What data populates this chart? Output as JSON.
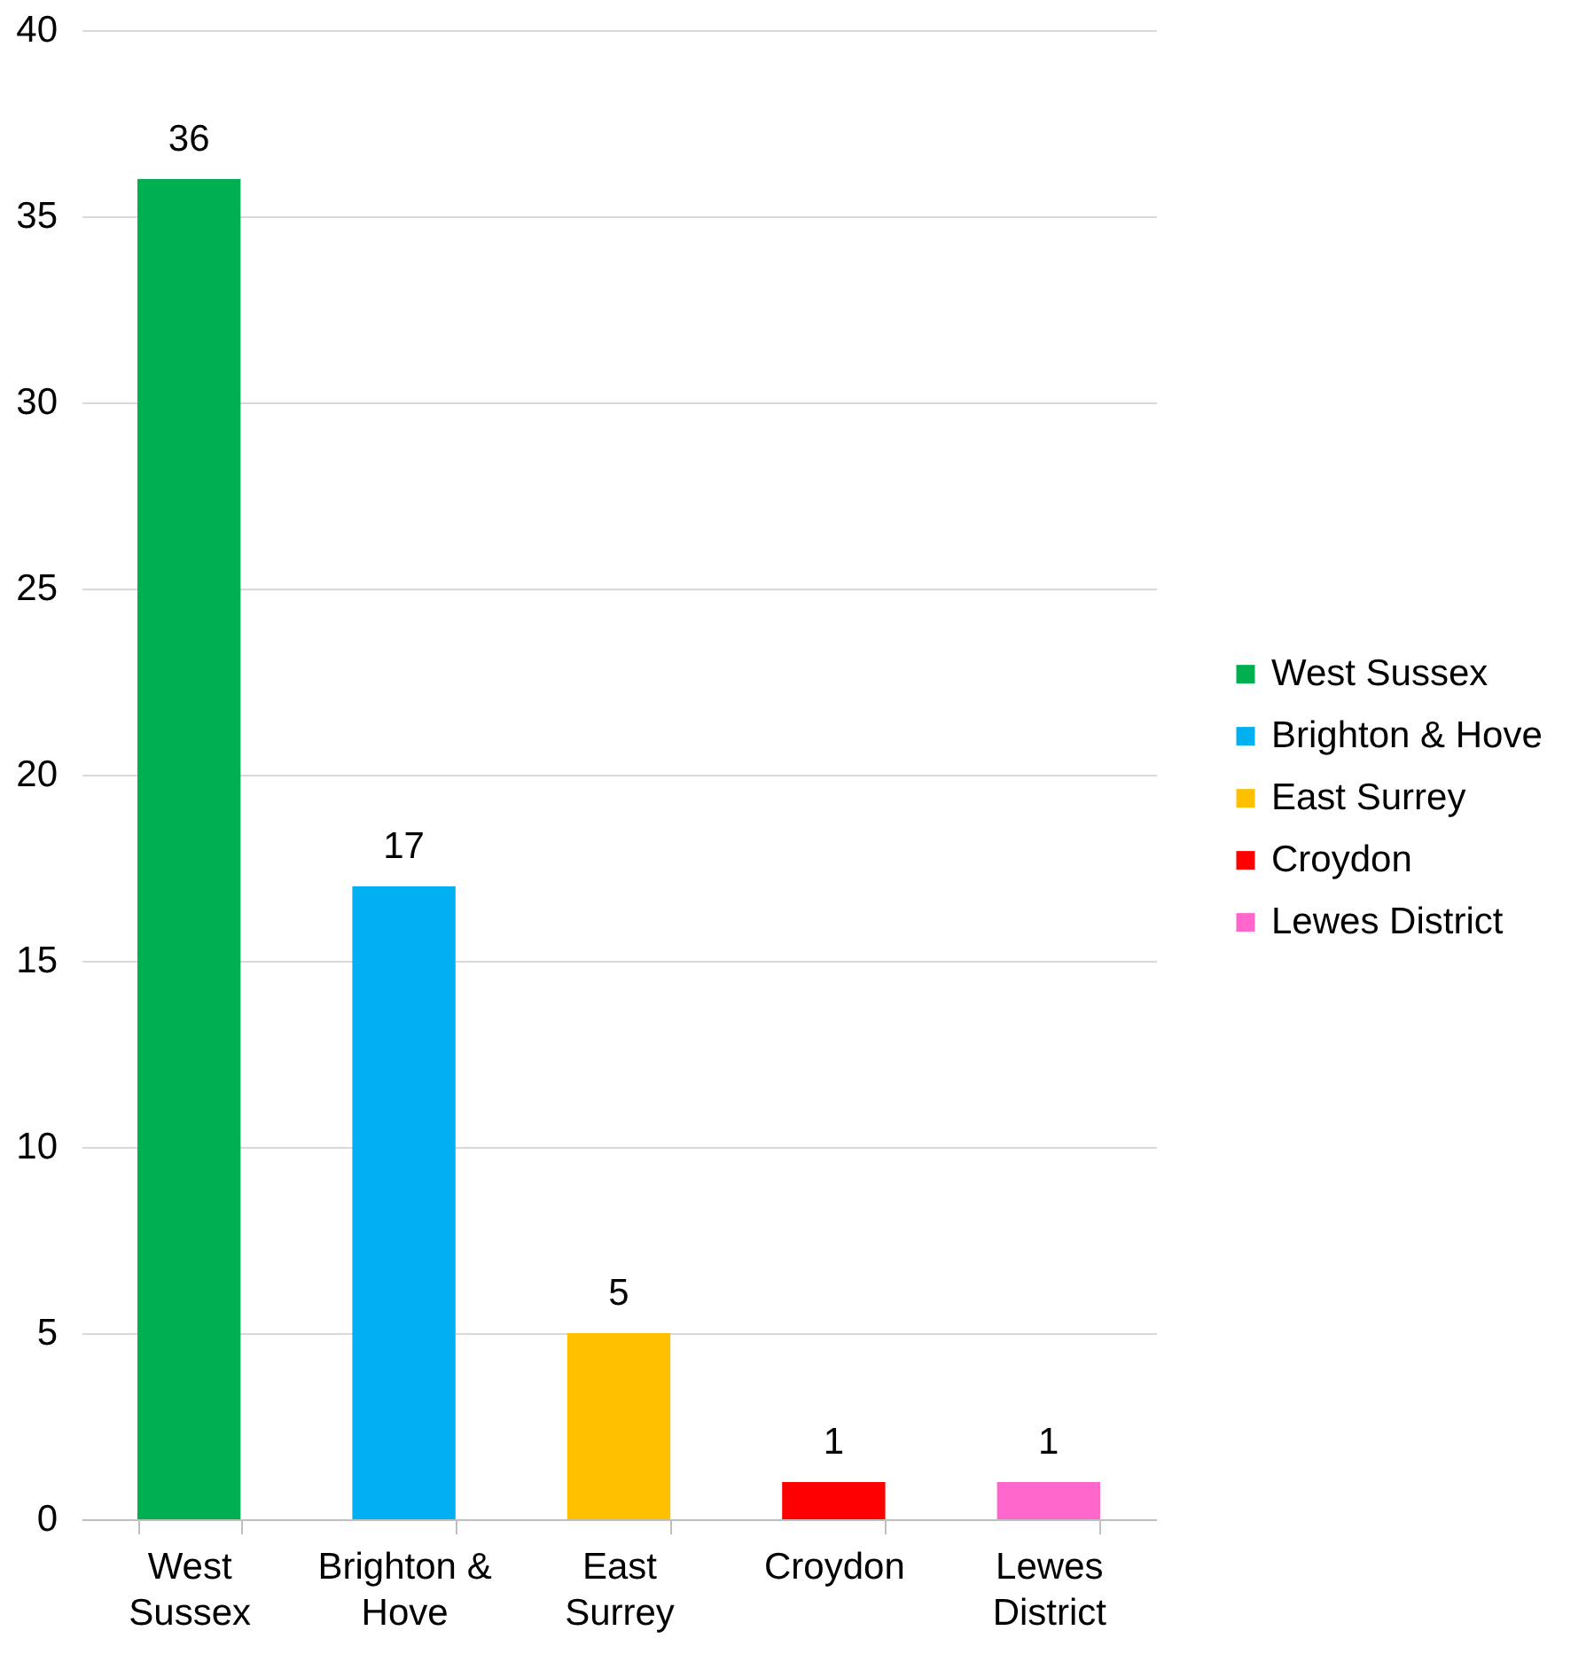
{
  "chart_data": {
    "type": "bar",
    "categories": [
      "West Sussex",
      "Brighton & Hove",
      "East Surrey",
      "Croydon",
      "Lewes District"
    ],
    "series": [
      {
        "name": "West Sussex",
        "color": "#00b050",
        "values": [
          36,
          null,
          null,
          null,
          null
        ]
      },
      {
        "name": "Brighton & Hove",
        "color": "#00b0f0",
        "values": [
          null,
          17,
          null,
          null,
          null
        ]
      },
      {
        "name": "East Surrey",
        "color": "#ffc000",
        "values": [
          null,
          null,
          5,
          null,
          null
        ]
      },
      {
        "name": "Croydon",
        "color": "#ff0000",
        "values": [
          null,
          null,
          null,
          1,
          null
        ]
      },
      {
        "name": "Lewes District",
        "color": "#ff66cc",
        "values": [
          null,
          null,
          null,
          null,
          1
        ]
      }
    ],
    "ylim": [
      0,
      40
    ],
    "yticks": [
      0,
      5,
      10,
      15,
      20,
      25,
      30,
      35,
      40
    ],
    "grid": "y",
    "legend": "right",
    "data_labels": true
  }
}
